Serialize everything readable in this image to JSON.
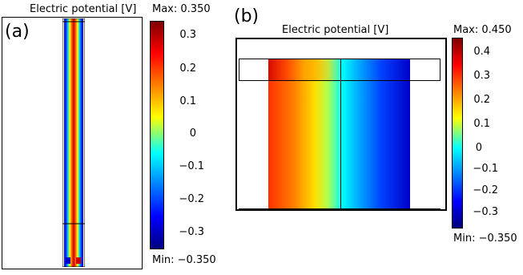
{
  "panel_a": {
    "letter": "(a)",
    "title": "Electric potential [V]",
    "max_label": "Max: 0.350",
    "min_label": "Min: −0.350",
    "ticks": [
      "0.3",
      "0.2",
      "0.1",
      "0",
      "−0.1",
      "−0.2",
      "−0.3"
    ],
    "colors": {
      "hot": "#cc0000",
      "cold": "#0000c8"
    }
  },
  "panel_b": {
    "letter": "(b)",
    "title": "Electric potential [V]",
    "max_label": "Max: 0.450",
    "min_label": "Min: −0.350",
    "ticks": [
      "0.4",
      "0.3",
      "0.2",
      "0.1",
      "0",
      "−0.1",
      "−0.2",
      "−0.3"
    ],
    "colors": {
      "hot": "#ff2200",
      "cold": "#0000c8"
    }
  }
}
